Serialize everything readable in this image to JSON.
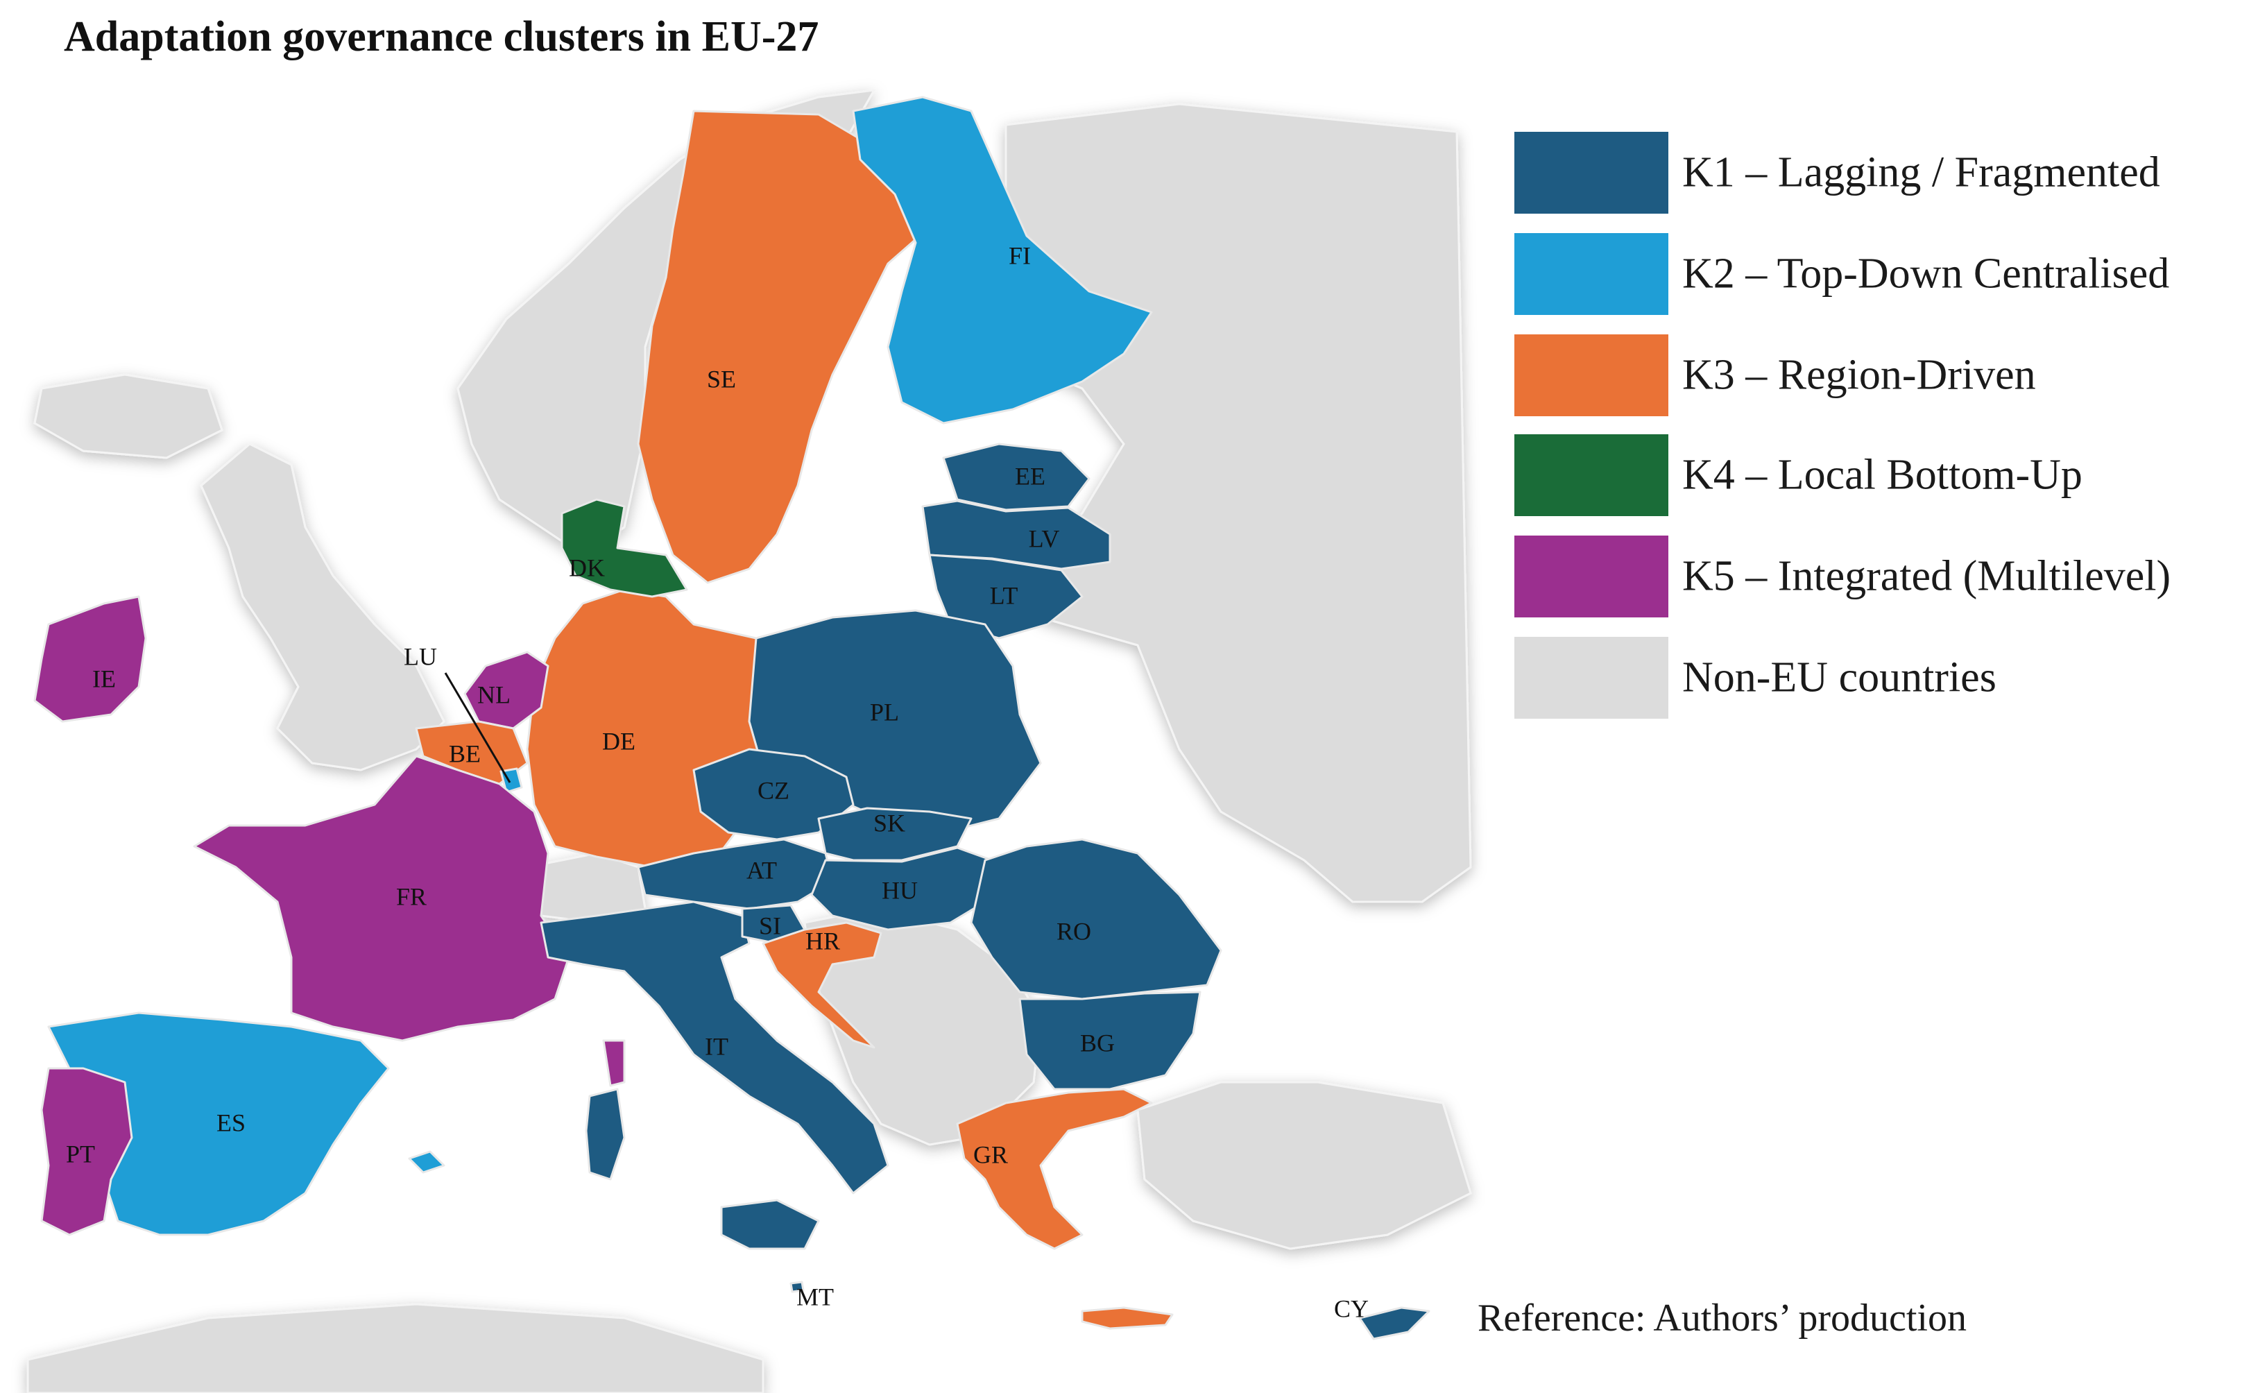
{
  "title": "Adaptation governance clusters in EU-27",
  "legend": [
    {
      "id": "K1",
      "label": "K1 – Lagging / Fragmented",
      "color": "#1e5b82"
    },
    {
      "id": "K2",
      "label": "K2 – Top-Down Centralised",
      "color": "#1f9ed6"
    },
    {
      "id": "K3",
      "label": "K3 – Region-Driven",
      "color": "#ea7236"
    },
    {
      "id": "K4",
      "label": "K4 – Local Bottom-Up",
      "color": "#1a6c38"
    },
    {
      "id": "K5",
      "label": "K5 – Integrated (Multilevel)",
      "color": "#9b2f8f"
    },
    {
      "id": "NONEU",
      "label": "Non-EU countries",
      "color": "#dcdcdc"
    }
  ],
  "countries": [
    {
      "code": "IE",
      "cluster": "K5"
    },
    {
      "code": "FR",
      "cluster": "K5"
    },
    {
      "code": "PT",
      "cluster": "K5"
    },
    {
      "code": "NL",
      "cluster": "K5"
    },
    {
      "code": "LU",
      "cluster": "K2"
    },
    {
      "code": "BE",
      "cluster": "K3"
    },
    {
      "code": "ES",
      "cluster": "K2"
    },
    {
      "code": "FI",
      "cluster": "K2"
    },
    {
      "code": "SE",
      "cluster": "K3"
    },
    {
      "code": "DK",
      "cluster": "K4"
    },
    {
      "code": "DE",
      "cluster": "K3"
    },
    {
      "code": "HR",
      "cluster": "K3"
    },
    {
      "code": "GR",
      "cluster": "K3"
    },
    {
      "code": "EE",
      "cluster": "K1"
    },
    {
      "code": "LV",
      "cluster": "K1"
    },
    {
      "code": "LT",
      "cluster": "K1"
    },
    {
      "code": "PL",
      "cluster": "K1"
    },
    {
      "code": "CZ",
      "cluster": "K1"
    },
    {
      "code": "SK",
      "cluster": "K1"
    },
    {
      "code": "AT",
      "cluster": "K1"
    },
    {
      "code": "HU",
      "cluster": "K1"
    },
    {
      "code": "SI",
      "cluster": "K1"
    },
    {
      "code": "RO",
      "cluster": "K1"
    },
    {
      "code": "BG",
      "cluster": "K1"
    },
    {
      "code": "IT",
      "cluster": "K1"
    },
    {
      "code": "MT",
      "cluster": "K1"
    },
    {
      "code": "CY",
      "cluster": "K1"
    }
  ],
  "reference": "Reference: Authors’ production"
}
